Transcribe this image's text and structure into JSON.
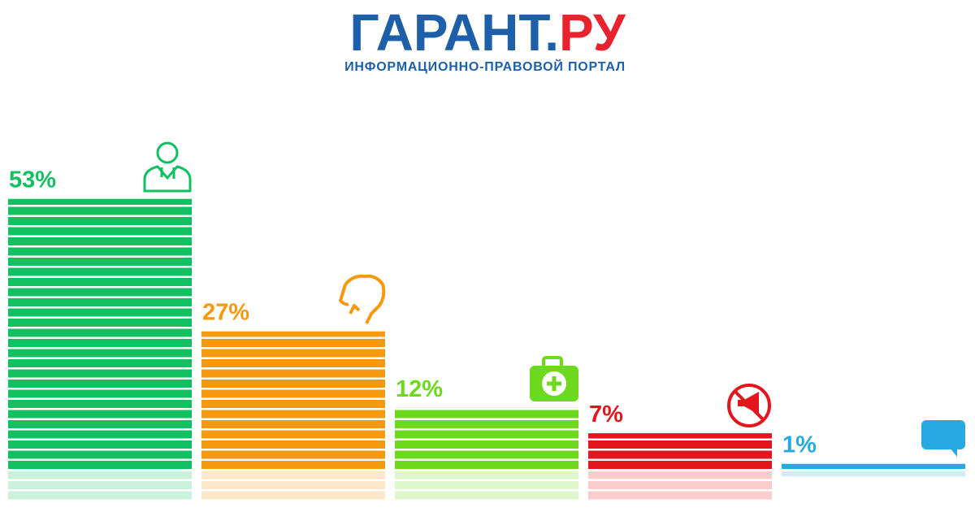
{
  "header": {
    "brand": "ГАРАНТ",
    "dot": ".",
    "suffix": "РУ",
    "tagline": "ИНФОРМАЦИОННО-ПРАВОВОЙ ПОРТАЛ"
  },
  "chart_data": {
    "type": "bar",
    "categories": [
      null,
      null,
      null,
      null,
      null
    ],
    "values": [
      53,
      27,
      12,
      7,
      1
    ],
    "value_labels": [
      "53%",
      "27%",
      "12%",
      "7%",
      "1%"
    ],
    "colors": [
      "#13c061",
      "#f7990e",
      "#6cd91d",
      "#e3151d",
      "#26a8e0"
    ]
  }
}
